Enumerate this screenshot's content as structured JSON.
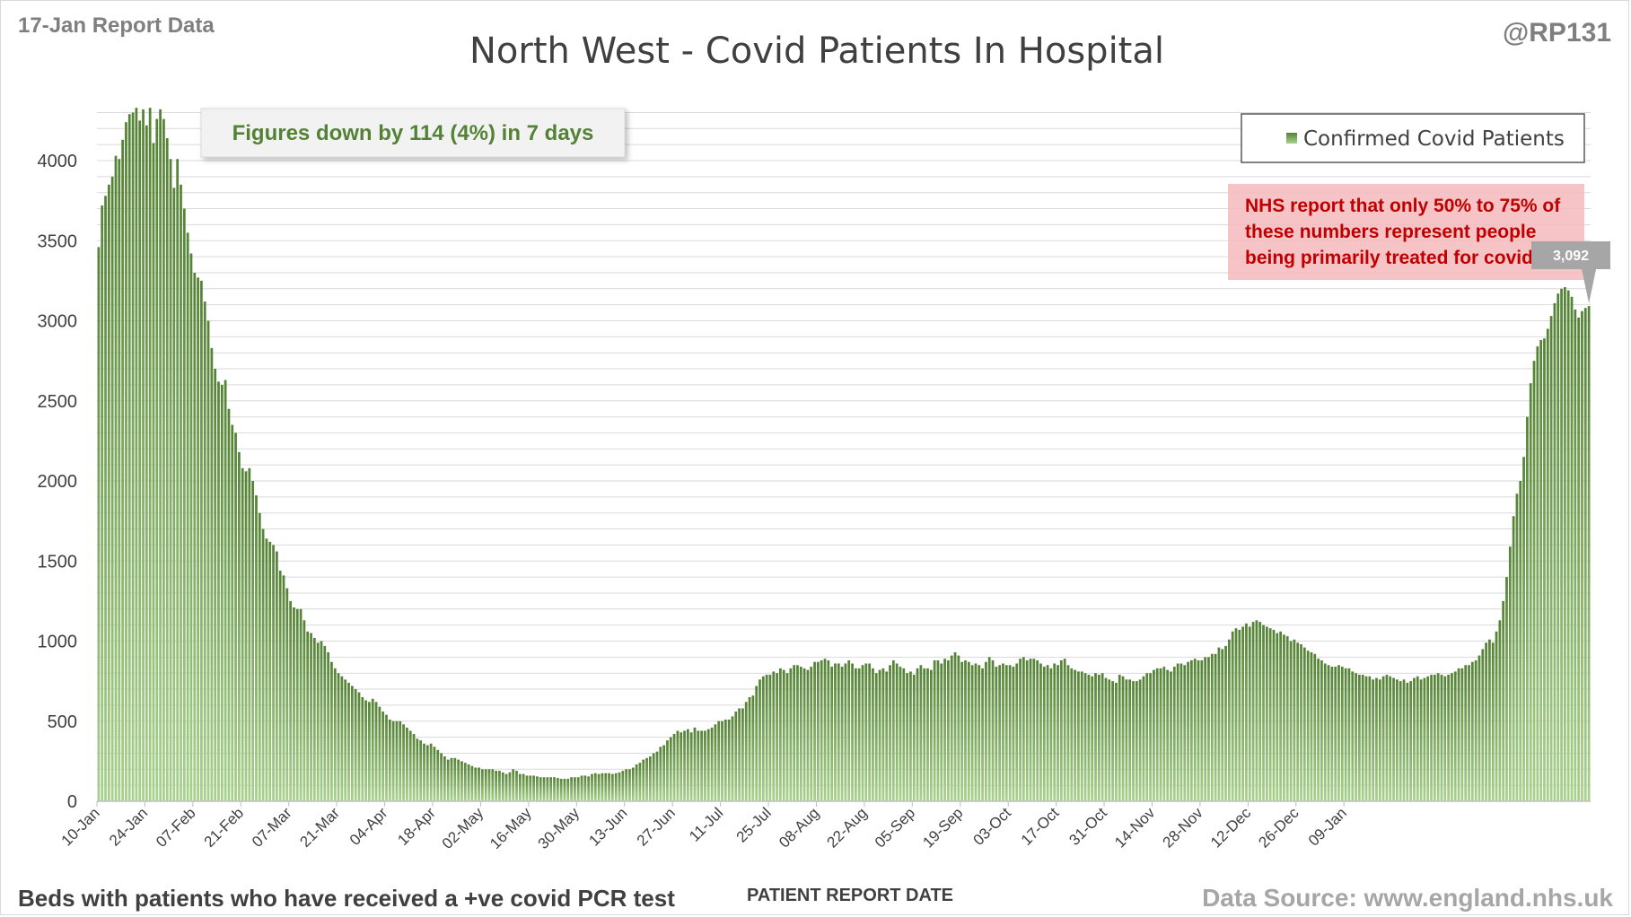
{
  "header": {
    "report_label": "17-Jan Report Data",
    "handle": "@RP131"
  },
  "footer": {
    "description": "Beds with patients who have received a +ve covid PCR test",
    "source": "Data Source: www.england.nhs.uk"
  },
  "annotations": {
    "summary": "Figures down by 114 (4%) in 7 days",
    "note_lines": [
      "NHS report that only 50% to 75% of",
      "these numbers represent people",
      "being primarily treated for covid."
    ],
    "last_value_label": "3,092"
  },
  "colors": {
    "bar_dark": "#548235",
    "bar_light": "#a9d18e",
    "summary_text": "#548235",
    "note_text": "#c00000",
    "note_bg": "#f4b8bc"
  },
  "chart_data": {
    "type": "bar",
    "title": "North West - Covid Patients In Hospital",
    "xlabel": "PATIENT REPORT DATE",
    "ylabel": "",
    "ylim": [
      0,
      4500
    ],
    "yticks": [
      0,
      500,
      1000,
      1500,
      2000,
      2500,
      3000,
      3500,
      4000
    ],
    "grid": true,
    "legend_position": "top-right",
    "x_start": "10-Jan",
    "x_end": "17-Jan",
    "x_tick_labels": [
      "10-Jan",
      "24-Jan",
      "07-Feb",
      "21-Feb",
      "07-Mar",
      "21-Mar",
      "04-Apr",
      "18-Apr",
      "02-May",
      "16-May",
      "30-May",
      "13-Jun",
      "27-Jun",
      "11-Jul",
      "25-Jul",
      "08-Aug",
      "22-Aug",
      "05-Sep",
      "19-Sep",
      "03-Oct",
      "17-Oct",
      "31-Oct",
      "14-Nov",
      "28-Nov",
      "12-Dec",
      "26-Dec",
      "09-Jan"
    ],
    "series": [
      {
        "name": "Confirmed Covid Patients",
        "values": [
          3460,
          3720,
          3780,
          3850,
          3900,
          4030,
          4010,
          4130,
          4240,
          4290,
          4300,
          4330,
          4250,
          4320,
          4220,
          4330,
          4110,
          4260,
          4320,
          4260,
          4140,
          4010,
          3830,
          4010,
          3850,
          3700,
          3550,
          3420,
          3300,
          3270,
          3250,
          3120,
          3000,
          2830,
          2700,
          2620,
          2600,
          2630,
          2450,
          2350,
          2300,
          2180,
          2080,
          2060,
          2080,
          2000,
          1910,
          1800,
          1700,
          1640,
          1620,
          1600,
          1560,
          1440,
          1410,
          1330,
          1250,
          1210,
          1200,
          1200,
          1130,
          1060,
          1050,
          1020,
          990,
          1000,
          970,
          930,
          870,
          830,
          800,
          780,
          760,
          740,
          720,
          700,
          680,
          650,
          630,
          620,
          640,
          620,
          590,
          560,
          540,
          510,
          500,
          500,
          500,
          480,
          460,
          440,
          420,
          390,
          380,
          360,
          350,
          360,
          340,
          320,
          300,
          280,
          260,
          270,
          270,
          260,
          250,
          240,
          230,
          220,
          210,
          210,
          200,
          200,
          200,
          200,
          190,
          190,
          180,
          170,
          180,
          200,
          190,
          170,
          170,
          160,
          160,
          160,
          155,
          150,
          150,
          150,
          150,
          150,
          145,
          140,
          140,
          140,
          150,
          150,
          150,
          160,
          160,
          155,
          170,
          175,
          170,
          175,
          175,
          175,
          170,
          175,
          180,
          190,
          200,
          200,
          210,
          230,
          240,
          260,
          270,
          280,
          300,
          310,
          340,
          350,
          380,
          400,
          420,
          440,
          430,
          440,
          450,
          430,
          460,
          440,
          440,
          440,
          450,
          460,
          480,
          500,
          500,
          510,
          510,
          530,
          560,
          580,
          580,
          620,
          650,
          660,
          720,
          760,
          780,
          790,
          790,
          810,
          800,
          830,
          820,
          800,
          830,
          850,
          850,
          840,
          830,
          820,
          840,
          870,
          870,
          880,
          890,
          880,
          840,
          860,
          860,
          840,
          860,
          880,
          860,
          830,
          830,
          850,
          860,
          860,
          830,
          800,
          820,
          830,
          810,
          850,
          880,
          860,
          840,
          830,
          800,
          810,
          790,
          830,
          850,
          830,
          830,
          820,
          880,
          880,
          860,
          890,
          880,
          910,
          930,
          910,
          870,
          880,
          870,
          850,
          860,
          850,
          830,
          870,
          900,
          880,
          840,
          850,
          860,
          850,
          850,
          840,
          860,
          890,
          900,
          880,
          890,
          890,
          880,
          860,
          840,
          850,
          830,
          860,
          850,
          880,
          890,
          850,
          830,
          820,
          810,
          810,
          800,
          790,
          780,
          800,
          790,
          800,
          770,
          760,
          750,
          740,
          790,
          780,
          760,
          760,
          750,
          750,
          760,
          780,
          800,
          800,
          820,
          830,
          830,
          840,
          820,
          810,
          840,
          860,
          860,
          850,
          870,
          880,
          890,
          880,
          880,
          900,
          900,
          920,
          920,
          960,
          950,
          970,
          1010,
          1060,
          1080,
          1070,
          1090,
          1110,
          1090,
          1120,
          1130,
          1120,
          1100,
          1090,
          1080,
          1070,
          1050,
          1060,
          1040,
          1030,
          1000,
          1010,
          990,
          980,
          960,
          940,
          930,
          920,
          890,
          880,
          860,
          850,
          840,
          840,
          850,
          840,
          830,
          830,
          810,
          800,
          790,
          790,
          780,
          780,
          760,
          770,
          760,
          780,
          790,
          780,
          770,
          760,
          750,
          760,
          740,
          750,
          770,
          780,
          760,
          770,
          780,
          790,
          790,
          800,
          790,
          780,
          790,
          800,
          810,
          830,
          830,
          850,
          850,
          870,
          880,
          910,
          950,
          990,
          1010,
          990,
          1060,
          1130,
          1250,
          1400,
          1590,
          1780,
          1920,
          2000,
          2150,
          2400,
          2610,
          2750,
          2840,
          2880,
          2890,
          2950,
          3030,
          3110,
          3170,
          3200,
          3210,
          3190,
          3150,
          3070,
          3020,
          3060,
          3080,
          3092
        ]
      }
    ]
  }
}
